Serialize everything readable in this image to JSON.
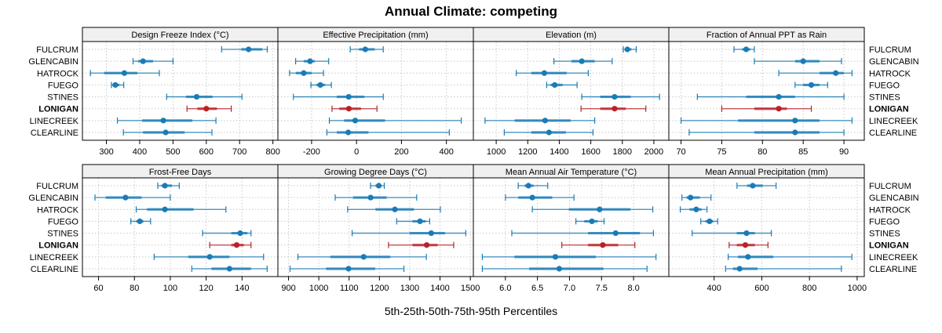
{
  "chart_data": {
    "type": "dotplot-percentiles",
    "title": "Annual Climate: competing",
    "xlabel": "5th-25th-50th-75th-95th Percentiles",
    "categories": [
      "FULCRUM",
      "GLENCABIN",
      "HATROCK",
      "FUEGO",
      "STINES",
      "LONIGAN",
      "LINECREEK",
      "CLEARLINE"
    ],
    "highlight": "LONIGAN",
    "colors": {
      "normal": "#1a7bb5",
      "highlight": "#b82227",
      "grid": "#c8c8c8",
      "strip": "#f0f0f0"
    },
    "panels": [
      {
        "title": "Design Freeze Index (°C)",
        "xlim": [
          228,
          815
        ],
        "ticks": [
          300,
          400,
          500,
          600,
          700,
          800
        ],
        "tick_labels": [
          "300",
          "400",
          "500",
          "600",
          "700",
          "800"
        ],
        "values": [
          [
            646,
            705,
            727,
            768,
            783
          ],
          [
            380,
            395,
            410,
            440,
            500
          ],
          [
            252,
            293,
            354,
            393,
            459
          ],
          [
            315,
            318,
            327,
            339,
            352
          ],
          [
            481,
            539,
            571,
            619,
            707
          ],
          [
            542,
            573,
            600,
            632,
            675
          ],
          [
            333,
            407,
            471,
            558,
            629
          ],
          [
            351,
            410,
            478,
            535,
            617
          ]
        ]
      },
      {
        "title": "Effective Precipitation (mm)",
        "xlim": [
          -350,
          520
        ],
        "ticks": [
          -200,
          0,
          200,
          400
        ],
        "tick_labels": [
          "-200",
          "0",
          "200",
          "400"
        ],
        "values": [
          [
            -28,
            11,
            39,
            81,
            119
          ],
          [
            -271,
            -235,
            -207,
            -186,
            -124
          ],
          [
            -298,
            -270,
            -235,
            -200,
            -147
          ],
          [
            -203,
            -178,
            -161,
            -140,
            -112
          ],
          [
            -281,
            -88,
            -35,
            35,
            119
          ],
          [
            -109,
            -77,
            -34,
            20,
            91
          ],
          [
            -121,
            -55,
            -6,
            127,
            466
          ],
          [
            -132,
            -88,
            -37,
            53,
            413
          ]
        ]
      },
      {
        "title": "Elevation (m)",
        "xlim": [
          855,
          2095
        ],
        "ticks": [
          1000,
          1200,
          1400,
          1600,
          1800,
          2000
        ],
        "tick_labels": [
          "1000",
          "1200",
          "1400",
          "1600",
          "1800",
          "2000"
        ],
        "values": [
          [
            1806,
            1817,
            1832,
            1858,
            1888
          ],
          [
            1366,
            1477,
            1543,
            1625,
            1736
          ],
          [
            1127,
            1223,
            1305,
            1447,
            1584
          ],
          [
            1320,
            1345,
            1371,
            1421,
            1513
          ],
          [
            1543,
            1660,
            1751,
            1853,
            2036
          ],
          [
            1538,
            1660,
            1751,
            1822,
            1949
          ],
          [
            929,
            1117,
            1310,
            1472,
            1625
          ],
          [
            1051,
            1223,
            1335,
            1442,
            1614
          ]
        ]
      },
      {
        "title": "Fraction of Annual PPT as Rain",
        "xlim": [
          68.5,
          92.5
        ],
        "ticks": [
          70,
          75,
          80,
          85,
          90
        ],
        "tick_labels": [
          "70",
          "75",
          "80",
          "85",
          "90"
        ],
        "values": [
          [
            76.5,
            77.5,
            78,
            78.5,
            79
          ],
          [
            79,
            84,
            85,
            87,
            89.7
          ],
          [
            82,
            87,
            89,
            90,
            91
          ],
          [
            84,
            85,
            86,
            87,
            88
          ],
          [
            72,
            78,
            82,
            84,
            90
          ],
          [
            75,
            79,
            82,
            83,
            86
          ],
          [
            70,
            77,
            84,
            87,
            91
          ],
          [
            71,
            79,
            84,
            87,
            90
          ]
        ]
      },
      {
        "title": "Frost-Free Days",
        "xlim": [
          51,
          160
        ],
        "ticks": [
          60,
          80,
          100,
          120,
          140
        ],
        "tick_labels": [
          "60",
          "80",
          "100",
          "120",
          "140"
        ],
        "values": [
          [
            93,
            95,
            97,
            101,
            105
          ],
          [
            58,
            64,
            75,
            84,
            100
          ],
          [
            81,
            87,
            97,
            113,
            131
          ],
          [
            78,
            81,
            83,
            85,
            89
          ],
          [
            118,
            134,
            139,
            143,
            145
          ],
          [
            122,
            134,
            137,
            141,
            145
          ],
          [
            91,
            110,
            122,
            133,
            152
          ],
          [
            112,
            123,
            133,
            145,
            154
          ]
        ]
      },
      {
        "title": "Growing Degree Days (°C)",
        "xlim": [
          865,
          1510
        ],
        "ticks": [
          900,
          1000,
          1100,
          1200,
          1300,
          1400,
          1500
        ],
        "tick_labels": [
          "900",
          "1000",
          "1100",
          "1200",
          "1300",
          "1400",
          "1500"
        ],
        "values": [
          [
            1171,
            1187,
            1198,
            1206,
            1216
          ],
          [
            1054,
            1113,
            1171,
            1224,
            1323
          ],
          [
            1095,
            1187,
            1251,
            1314,
            1401
          ],
          [
            1257,
            1309,
            1334,
            1353,
            1366
          ],
          [
            1110,
            1300,
            1371,
            1417,
            1485
          ],
          [
            1230,
            1309,
            1356,
            1392,
            1445
          ],
          [
            931,
            1038,
            1148,
            1236,
            1355
          ],
          [
            905,
            1024,
            1098,
            1186,
            1281
          ]
        ]
      },
      {
        "title": "Mean Annual Air Temperature (°C)",
        "xlim": [
          5.5,
          8.55
        ],
        "ticks": [
          6.0,
          6.5,
          7.0,
          7.5,
          8.0
        ],
        "tick_labels": [
          "6.0",
          "6.5",
          "7.0",
          "7.5",
          "8.0"
        ],
        "values": [
          [
            6.2,
            6.3,
            6.36,
            6.44,
            6.66
          ],
          [
            6.0,
            6.2,
            6.42,
            6.73,
            7.07
          ],
          [
            6.42,
            6.99,
            7.47,
            7.95,
            8.3
          ],
          [
            7.1,
            7.23,
            7.35,
            7.44,
            7.54
          ],
          [
            6.1,
            7.29,
            7.72,
            8.1,
            8.31
          ],
          [
            6.88,
            7.29,
            7.52,
            7.76,
            8.02
          ],
          [
            5.64,
            6.14,
            6.78,
            7.41,
            8.35
          ],
          [
            5.64,
            6.37,
            6.84,
            7.53,
            8.21
          ]
        ]
      },
      {
        "title": "Mean Annual Precipitation (mm)",
        "xlim": [
          210,
          1030
        ],
        "ticks": [
          400,
          600,
          800,
          1000
        ],
        "tick_labels": [
          "400",
          "600",
          "800",
          "1000"
        ],
        "values": [
          [
            496,
            538,
            562,
            604,
            660
          ],
          [
            265,
            284,
            301,
            340,
            387
          ],
          [
            258,
            297,
            325,
            348,
            370
          ],
          [
            344,
            363,
            381,
            396,
            415
          ],
          [
            308,
            495,
            536,
            571,
            640
          ],
          [
            463,
            495,
            531,
            571,
            626
          ],
          [
            459,
            500,
            542,
            648,
            978
          ],
          [
            448,
            479,
            507,
            582,
            934
          ]
        ]
      }
    ]
  }
}
